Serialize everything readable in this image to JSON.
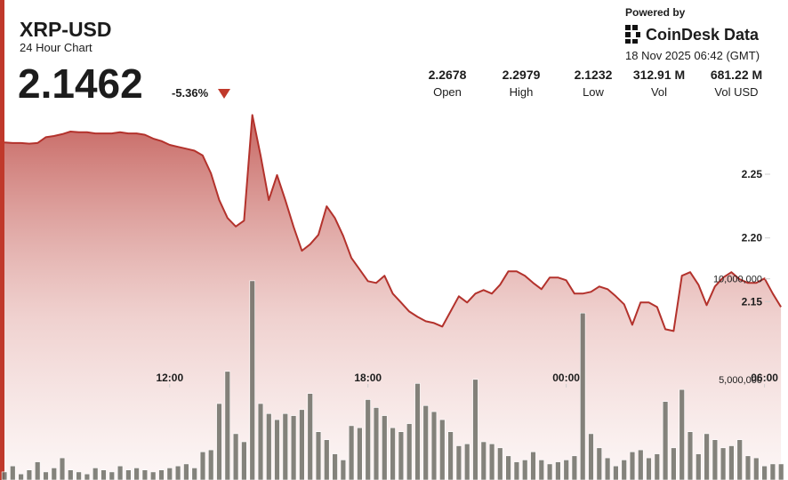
{
  "header": {
    "title": "XRP-USD",
    "subtitle": "24 Hour Chart",
    "price": "2.1462",
    "change": "-5.36%",
    "powered_by": "Powered by",
    "brand": "CoinDesk Data",
    "timestamp": "18 Nov 2025 06:42 (GMT)",
    "stats": [
      {
        "value": "2.2678",
        "label": "Open"
      },
      {
        "value": "2.2979",
        "label": "High"
      },
      {
        "value": "2.1232",
        "label": "Low"
      },
      {
        "value": "312.91 M",
        "label": "Vol"
      },
      {
        "value": "681.22 M",
        "label": "Vol USD"
      }
    ]
  },
  "chart_data": {
    "type": "line",
    "x": [
      7,
      7.25,
      7.5,
      7.75,
      8,
      8.25,
      8.5,
      8.75,
      9,
      9.25,
      9.5,
      9.75,
      10,
      10.25,
      10.5,
      10.75,
      11,
      11.25,
      11.5,
      11.75,
      12,
      12.25,
      12.5,
      12.75,
      13,
      13.25,
      13.5,
      13.75,
      14,
      14.25,
      14.5,
      14.75,
      15,
      15.25,
      15.5,
      15.75,
      16,
      16.25,
      16.5,
      16.75,
      17,
      17.25,
      17.5,
      17.75,
      18,
      18.25,
      18.5,
      18.75,
      19,
      19.25,
      19.5,
      19.75,
      20,
      20.25,
      20.5,
      20.75,
      21,
      21.25,
      21.5,
      21.75,
      22,
      22.25,
      22.5,
      22.75,
      23,
      23.25,
      23.5,
      23.75,
      24,
      24.25,
      24.5,
      24.75,
      25,
      25.25,
      25.5,
      25.75,
      26,
      26.25,
      26.5,
      26.75,
      27,
      27.25,
      27.5,
      27.75,
      28,
      28.25,
      28.5,
      28.75,
      29,
      29.25,
      29.5,
      29.75,
      30,
      30.25,
      30.5
    ],
    "series": [
      {
        "type": "line",
        "color": "#b3322c",
        "values": [
          2.275,
          2.2745,
          2.2745,
          2.274,
          2.2745,
          2.279,
          2.28,
          2.2815,
          2.2835,
          2.283,
          2.283,
          2.282,
          2.282,
          2.282,
          2.283,
          2.282,
          2.282,
          2.281,
          2.278,
          2.276,
          2.273,
          2.2715,
          2.27,
          2.2685,
          2.2647,
          2.2507,
          2.2297,
          2.2157,
          2.209,
          2.2136,
          2.2965,
          2.2647,
          2.2297,
          2.2493,
          2.2297,
          2.2087,
          2.1899,
          2.195,
          2.2024,
          2.2248,
          2.2157,
          2.2017,
          2.1843,
          2.1752,
          2.1661,
          2.1647,
          2.1703,
          2.1563,
          2.1493,
          2.1423,
          2.1381,
          2.1346,
          2.1332,
          2.1304,
          2.1423,
          2.1542,
          2.1493,
          2.1563,
          2.1591,
          2.1563,
          2.1633,
          2.1738,
          2.1738,
          2.1703,
          2.1647,
          2.1598,
          2.1689,
          2.1689,
          2.1668,
          2.1563,
          2.1563,
          2.1577,
          2.1619,
          2.1598,
          2.1542,
          2.1479,
          2.1318,
          2.1493,
          2.1493,
          2.1458,
          2.1283,
          2.1269,
          2.1703,
          2.1731,
          2.1633,
          2.1472,
          2.1619,
          2.1689,
          2.1731,
          2.1675,
          2.1647,
          2.1647,
          2.1682,
          2.1563,
          2.1458
        ]
      },
      {
        "type": "bar",
        "axis": "y2",
        "color": "#6e6e66",
        "values": [
          400000,
          700000,
          300000,
          500000,
          900000,
          400000,
          600000,
          1100000,
          500000,
          400000,
          300000,
          600000,
          500000,
          400000,
          700000,
          500000,
          600000,
          500000,
          400000,
          500000,
          600000,
          700000,
          800000,
          600000,
          1400000,
          1500000,
          3800000,
          5400000,
          2300000,
          1900000,
          9900000,
          3800000,
          3300000,
          3000000,
          3300000,
          3200000,
          3500000,
          4300000,
          2400000,
          2000000,
          1300000,
          1000000,
          2700000,
          2600000,
          4000000,
          3600000,
          3200000,
          2600000,
          2400000,
          2800000,
          4800000,
          3700000,
          3400000,
          3000000,
          2400000,
          1700000,
          1800000,
          5000000,
          1900000,
          1800000,
          1600000,
          1200000,
          900000,
          1000000,
          1400000,
          1000000,
          800000,
          900000,
          1000000,
          1200000,
          8300000,
          2300000,
          1600000,
          1100000,
          700000,
          1000000,
          1400000,
          1500000,
          1100000,
          1300000,
          3900000,
          1600000,
          4500000,
          2400000,
          1300000,
          2300000,
          2000000,
          1600000,
          1700000,
          2000000,
          1200000,
          1100000,
          700000,
          800000,
          800000
        ]
      }
    ],
    "xlim": [
      7,
      30.55
    ],
    "xticks": [
      {
        "value": 12,
        "label": "12:00"
      },
      {
        "value": 18,
        "label": "18:00"
      },
      {
        "value": 24,
        "label": "00:00"
      },
      {
        "value": 30,
        "label": "06:00"
      }
    ],
    "ylim": [
      2.01,
      2.31
    ],
    "yticks": [
      2.15,
      {
        "value": 2.2,
        "label": "2.20"
      },
      2.25
    ],
    "y2lim": [
      0,
      19000000
    ],
    "y2ticks": [
      {
        "value": 5000000,
        "label": "5,000,000"
      },
      {
        "value": 10000000,
        "label": "10,000,000"
      }
    ]
  }
}
